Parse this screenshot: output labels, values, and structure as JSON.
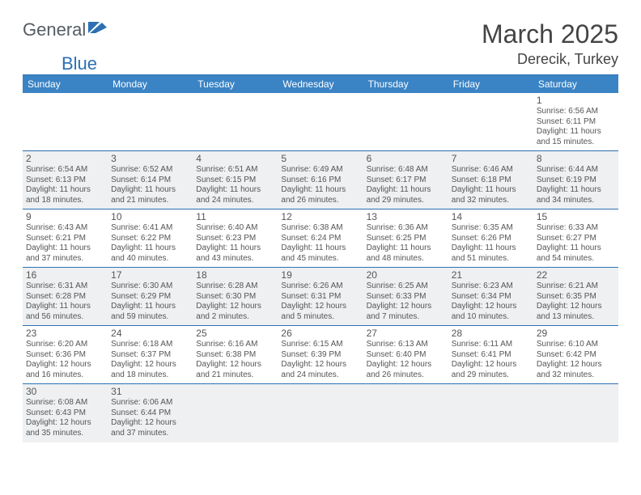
{
  "brand": {
    "part1": "General",
    "part2": "Blue"
  },
  "title": "March 2025",
  "location": "Derecik, Turkey",
  "day_headers": [
    "Sunday",
    "Monday",
    "Tuesday",
    "Wednesday",
    "Thursday",
    "Friday",
    "Saturday"
  ],
  "colors": {
    "header_bg": "#3a83c4",
    "border": "#2d70b3",
    "alt_row": "#eef0f2",
    "text": "#555555",
    "title": "#444444"
  },
  "weeks": [
    [
      {
        "blank": true
      },
      {
        "blank": true
      },
      {
        "blank": true
      },
      {
        "blank": true
      },
      {
        "blank": true
      },
      {
        "blank": true
      },
      {
        "n": "1",
        "sr": "6:56 AM",
        "ss": "6:11 PM",
        "dl": "11 hours and 15 minutes."
      }
    ],
    [
      {
        "n": "2",
        "sr": "6:54 AM",
        "ss": "6:13 PM",
        "dl": "11 hours and 18 minutes."
      },
      {
        "n": "3",
        "sr": "6:52 AM",
        "ss": "6:14 PM",
        "dl": "11 hours and 21 minutes."
      },
      {
        "n": "4",
        "sr": "6:51 AM",
        "ss": "6:15 PM",
        "dl": "11 hours and 24 minutes."
      },
      {
        "n": "5",
        "sr": "6:49 AM",
        "ss": "6:16 PM",
        "dl": "11 hours and 26 minutes."
      },
      {
        "n": "6",
        "sr": "6:48 AM",
        "ss": "6:17 PM",
        "dl": "11 hours and 29 minutes."
      },
      {
        "n": "7",
        "sr": "6:46 AM",
        "ss": "6:18 PM",
        "dl": "11 hours and 32 minutes."
      },
      {
        "n": "8",
        "sr": "6:44 AM",
        "ss": "6:19 PM",
        "dl": "11 hours and 34 minutes."
      }
    ],
    [
      {
        "n": "9",
        "sr": "6:43 AM",
        "ss": "6:21 PM",
        "dl": "11 hours and 37 minutes."
      },
      {
        "n": "10",
        "sr": "6:41 AM",
        "ss": "6:22 PM",
        "dl": "11 hours and 40 minutes."
      },
      {
        "n": "11",
        "sr": "6:40 AM",
        "ss": "6:23 PM",
        "dl": "11 hours and 43 minutes."
      },
      {
        "n": "12",
        "sr": "6:38 AM",
        "ss": "6:24 PM",
        "dl": "11 hours and 45 minutes."
      },
      {
        "n": "13",
        "sr": "6:36 AM",
        "ss": "6:25 PM",
        "dl": "11 hours and 48 minutes."
      },
      {
        "n": "14",
        "sr": "6:35 AM",
        "ss": "6:26 PM",
        "dl": "11 hours and 51 minutes."
      },
      {
        "n": "15",
        "sr": "6:33 AM",
        "ss": "6:27 PM",
        "dl": "11 hours and 54 minutes."
      }
    ],
    [
      {
        "n": "16",
        "sr": "6:31 AM",
        "ss": "6:28 PM",
        "dl": "11 hours and 56 minutes."
      },
      {
        "n": "17",
        "sr": "6:30 AM",
        "ss": "6:29 PM",
        "dl": "11 hours and 59 minutes."
      },
      {
        "n": "18",
        "sr": "6:28 AM",
        "ss": "6:30 PM",
        "dl": "12 hours and 2 minutes."
      },
      {
        "n": "19",
        "sr": "6:26 AM",
        "ss": "6:31 PM",
        "dl": "12 hours and 5 minutes."
      },
      {
        "n": "20",
        "sr": "6:25 AM",
        "ss": "6:33 PM",
        "dl": "12 hours and 7 minutes."
      },
      {
        "n": "21",
        "sr": "6:23 AM",
        "ss": "6:34 PM",
        "dl": "12 hours and 10 minutes."
      },
      {
        "n": "22",
        "sr": "6:21 AM",
        "ss": "6:35 PM",
        "dl": "12 hours and 13 minutes."
      }
    ],
    [
      {
        "n": "23",
        "sr": "6:20 AM",
        "ss": "6:36 PM",
        "dl": "12 hours and 16 minutes."
      },
      {
        "n": "24",
        "sr": "6:18 AM",
        "ss": "6:37 PM",
        "dl": "12 hours and 18 minutes."
      },
      {
        "n": "25",
        "sr": "6:16 AM",
        "ss": "6:38 PM",
        "dl": "12 hours and 21 minutes."
      },
      {
        "n": "26",
        "sr": "6:15 AM",
        "ss": "6:39 PM",
        "dl": "12 hours and 24 minutes."
      },
      {
        "n": "27",
        "sr": "6:13 AM",
        "ss": "6:40 PM",
        "dl": "12 hours and 26 minutes."
      },
      {
        "n": "28",
        "sr": "6:11 AM",
        "ss": "6:41 PM",
        "dl": "12 hours and 29 minutes."
      },
      {
        "n": "29",
        "sr": "6:10 AM",
        "ss": "6:42 PM",
        "dl": "12 hours and 32 minutes."
      }
    ],
    [
      {
        "n": "30",
        "sr": "6:08 AM",
        "ss": "6:43 PM",
        "dl": "12 hours and 35 minutes."
      },
      {
        "n": "31",
        "sr": "6:06 AM",
        "ss": "6:44 PM",
        "dl": "12 hours and 37 minutes."
      },
      {
        "blank": true
      },
      {
        "blank": true
      },
      {
        "blank": true
      },
      {
        "blank": true
      },
      {
        "blank": true
      }
    ]
  ]
}
